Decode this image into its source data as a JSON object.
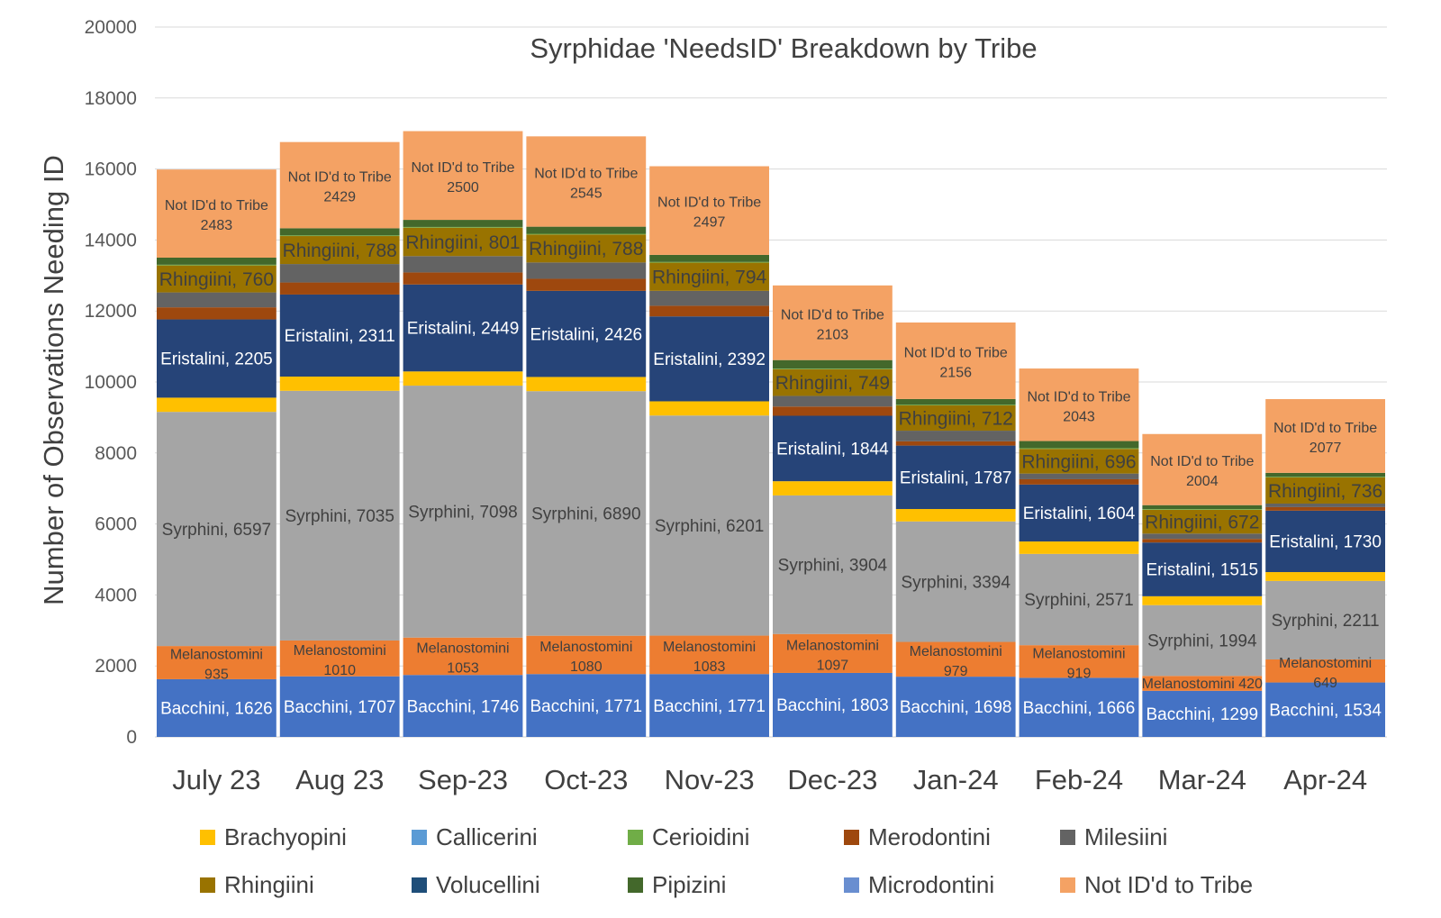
{
  "chart_data": {
    "type": "bar",
    "stacked": true,
    "title": "Syrphidae 'NeedsID' Breakdown by Tribe",
    "xlabel": "",
    "ylabel": "Number of Observations Needing ID",
    "ylim": [
      0,
      20000
    ],
    "yticks": [
      "0",
      "2000",
      "4000",
      "6000",
      "8000",
      "10000",
      "12000",
      "14000",
      "16000",
      "18000",
      "20000"
    ],
    "grid": true,
    "legend_position": "bottom",
    "categories": [
      "July 23",
      "Aug 23",
      "Sep-23",
      "Oct-23",
      "Nov-23",
      "Dec-23",
      "Jan-24",
      "Feb-24",
      "Mar-24",
      "Apr-24"
    ],
    "series": [
      {
        "name": "Bacchini",
        "color": "#4472c4",
        "label_color": "#ffffff",
        "label_style": "inline",
        "values": [
          1626,
          1707,
          1746,
          1771,
          1771,
          1803,
          1698,
          1666,
          1299,
          1534
        ],
        "labels": [
          "Bacchini, 1626",
          "Bacchini, 1707",
          "Bacchini, 1746",
          "Bacchini, 1771",
          "Bacchini, 1771",
          "Bacchini, 1803",
          "Bacchini, 1698",
          "Bacchini, 1666",
          "Bacchini, 1299",
          "Bacchini, 1534"
        ]
      },
      {
        "name": "Melanostomini",
        "color": "#ed7d31",
        "label_color": "#404040",
        "label_style": "two-line",
        "values": [
          935,
          1010,
          1053,
          1080,
          1083,
          1097,
          979,
          919,
          420,
          649
        ],
        "labels": [
          "Melanostomini|935",
          "Melanostomini|1010",
          "Melanostomini|1053",
          "Melanostomini|1080",
          "Melanostomini|1083",
          "Melanostomini|1097",
          "Melanostomini|979",
          "Melanostomini|919",
          "Melanostomini 420",
          "Melanostomini|649"
        ]
      },
      {
        "name": "Syrphini",
        "color": "#a5a5a5",
        "label_color": "#404040",
        "label_style": "inline",
        "values": [
          6597,
          7035,
          7098,
          6890,
          6201,
          3904,
          3394,
          2571,
          1994,
          2211
        ],
        "labels": [
          "Syrphini, 6597",
          "Syrphini, 7035",
          "Syrphini, 7098",
          "Syrphini, 6890",
          "Syrphini, 6201",
          "Syrphini, 3904",
          "Syrphini, 3394",
          "Syrphini, 2571",
          "Syrphini, 1994",
          "Syrphini, 2211"
        ]
      },
      {
        "name": "Brachyopini",
        "color": "#ffc000",
        "values": [
          400,
          400,
          400,
          400,
          400,
          400,
          350,
          350,
          250,
          250
        ]
      },
      {
        "name": "Volucellini",
        "color": "#1f4e79",
        "values": [
          0,
          0,
          0,
          0,
          0,
          0,
          0,
          0,
          0,
          0
        ]
      },
      {
        "name": "Eristalini",
        "color": "#264478",
        "label_color": "#ffffff",
        "label_style": "inline",
        "values": [
          2205,
          2311,
          2449,
          2426,
          2392,
          1844,
          1787,
          1604,
          1515,
          1730
        ],
        "labels": [
          "Eristalini, 2205",
          "Eristalini, 2311",
          "Eristalini, 2449",
          "Eristalini, 2426",
          "Eristalini, 2392",
          "Eristalini, 1844",
          "Eristalini, 1787",
          "Eristalini, 1604",
          "Eristalini, 1515",
          "Eristalini, 1730"
        ]
      },
      {
        "name": "Merodontini",
        "color": "#9e480e",
        "values": [
          340,
          340,
          340,
          340,
          300,
          260,
          120,
          150,
          100,
          100
        ]
      },
      {
        "name": "Milesiini",
        "color": "#636363",
        "values": [
          420,
          520,
          460,
          460,
          420,
          300,
          300,
          160,
          150,
          100
        ]
      },
      {
        "name": "Rhingiini",
        "color": "#997300",
        "label_color": "#404040",
        "label_style": "inline",
        "values": [
          760,
          788,
          801,
          788,
          794,
          749,
          712,
          696,
          672,
          736
        ],
        "labels": [
          "Rhingiini, 760",
          "Rhingiini, 788",
          "Rhingiini, 801",
          "Rhingiini, 788",
          "Rhingiini, 794",
          "Rhingiini, 749",
          "Rhingiini, 712",
          "Rhingiini, 696",
          "Rhingiini, 672",
          "Rhingiini, 736"
        ]
      },
      {
        "name": "Callicerini",
        "color": "#5b9bd5",
        "values": [
          0,
          0,
          0,
          0,
          0,
          0,
          0,
          0,
          0,
          0
        ]
      },
      {
        "name": "Cerioidini",
        "color": "#70ad47",
        "values": [
          20,
          20,
          20,
          20,
          20,
          20,
          20,
          20,
          20,
          20
        ]
      },
      {
        "name": "Pipizini",
        "color": "#43682b",
        "values": [
          200,
          200,
          200,
          200,
          200,
          240,
          160,
          200,
          110,
          110
        ]
      },
      {
        "name": "Microdontini",
        "color": "#698ed0",
        "values": [
          0,
          0,
          0,
          0,
          0,
          0,
          0,
          0,
          0,
          0
        ]
      },
      {
        "name": "Not ID'd to Tribe",
        "color": "#f4a264",
        "label_color": "#404040",
        "label_style": "two-line",
        "values": [
          2483,
          2429,
          2500,
          2545,
          2497,
          2103,
          2156,
          2043,
          2004,
          2077
        ],
        "labels": [
          "Not ID'd to Tribe|2483",
          "Not ID'd to Tribe|2429",
          "Not ID'd to Tribe|2500",
          "Not ID'd to Tribe|2545",
          "Not ID'd to Tribe|2497",
          "Not ID'd to Tribe|2103",
          "Not ID'd to Tribe|2156",
          "Not ID'd to Tribe|2043",
          "Not ID'd to Tribe|2004",
          "Not ID'd to Tribe|2077"
        ]
      }
    ],
    "legend": [
      {
        "name": "Brachyopini",
        "color": "#ffc000"
      },
      {
        "name": "Callicerini",
        "color": "#5b9bd5"
      },
      {
        "name": "Cerioidini",
        "color": "#70ad47"
      },
      {
        "name": "Merodontini",
        "color": "#9e480e"
      },
      {
        "name": "Milesiini",
        "color": "#636363"
      },
      {
        "name": "Rhingiini",
        "color": "#997300"
      },
      {
        "name": "Volucellini",
        "color": "#1f4e79"
      },
      {
        "name": "Pipizini",
        "color": "#43682b"
      },
      {
        "name": "Microdontini",
        "color": "#698ed0"
      },
      {
        "name": "Not ID'd to Tribe",
        "color": "#f4a264"
      }
    ]
  }
}
